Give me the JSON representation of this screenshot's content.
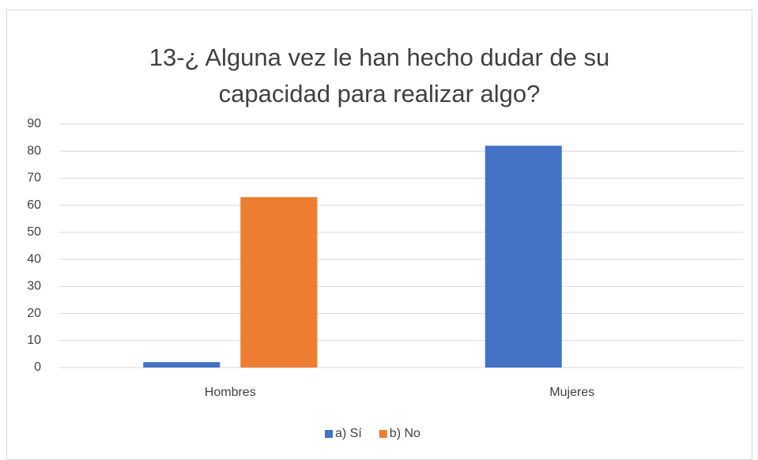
{
  "chart_data": {
    "type": "bar",
    "title": "13-¿ Alguna vez le han hecho dudar de su capacidad para realizar algo?",
    "categories": [
      "Hombres",
      "Mujeres"
    ],
    "series": [
      {
        "name": "a) Sí",
        "color": "#4472c4",
        "values": [
          2,
          82
        ]
      },
      {
        "name": "b) No",
        "color": "#ed7d31",
        "values": [
          63,
          0
        ]
      }
    ],
    "ylim": [
      0,
      90
    ],
    "yticks": [
      0,
      10,
      20,
      30,
      40,
      50,
      60,
      70,
      80,
      90
    ],
    "grid": true,
    "legend": "bottom"
  }
}
